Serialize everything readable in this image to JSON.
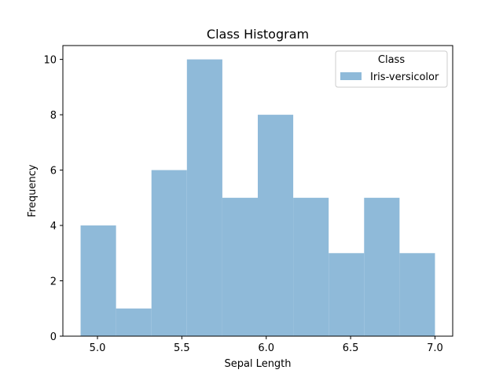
{
  "chart_data": {
    "type": "histogram",
    "title": "Class Histogram",
    "xlabel": "Sepal Length",
    "ylabel": "Frequency",
    "xlim": [
      4.795,
      7.105
    ],
    "ylim": [
      0,
      10.5
    ],
    "xticks": [
      "5.0",
      "5.5",
      "6.0",
      "6.5",
      "7.0"
    ],
    "yticks": [
      "0",
      "2",
      "4",
      "6",
      "8",
      "10"
    ],
    "bin_edges": [
      4.9,
      5.11,
      5.32,
      5.53,
      5.74,
      5.95,
      6.16,
      6.37,
      6.58,
      6.79,
      7.0
    ],
    "series": [
      {
        "name": "Iris-versicolor",
        "values": [
          4,
          1,
          6,
          10,
          5,
          8,
          5,
          3,
          5,
          3
        ],
        "color": "#8fbad9"
      }
    ],
    "legend": {
      "title": "Class",
      "placement": "top-right"
    },
    "grid": false
  }
}
